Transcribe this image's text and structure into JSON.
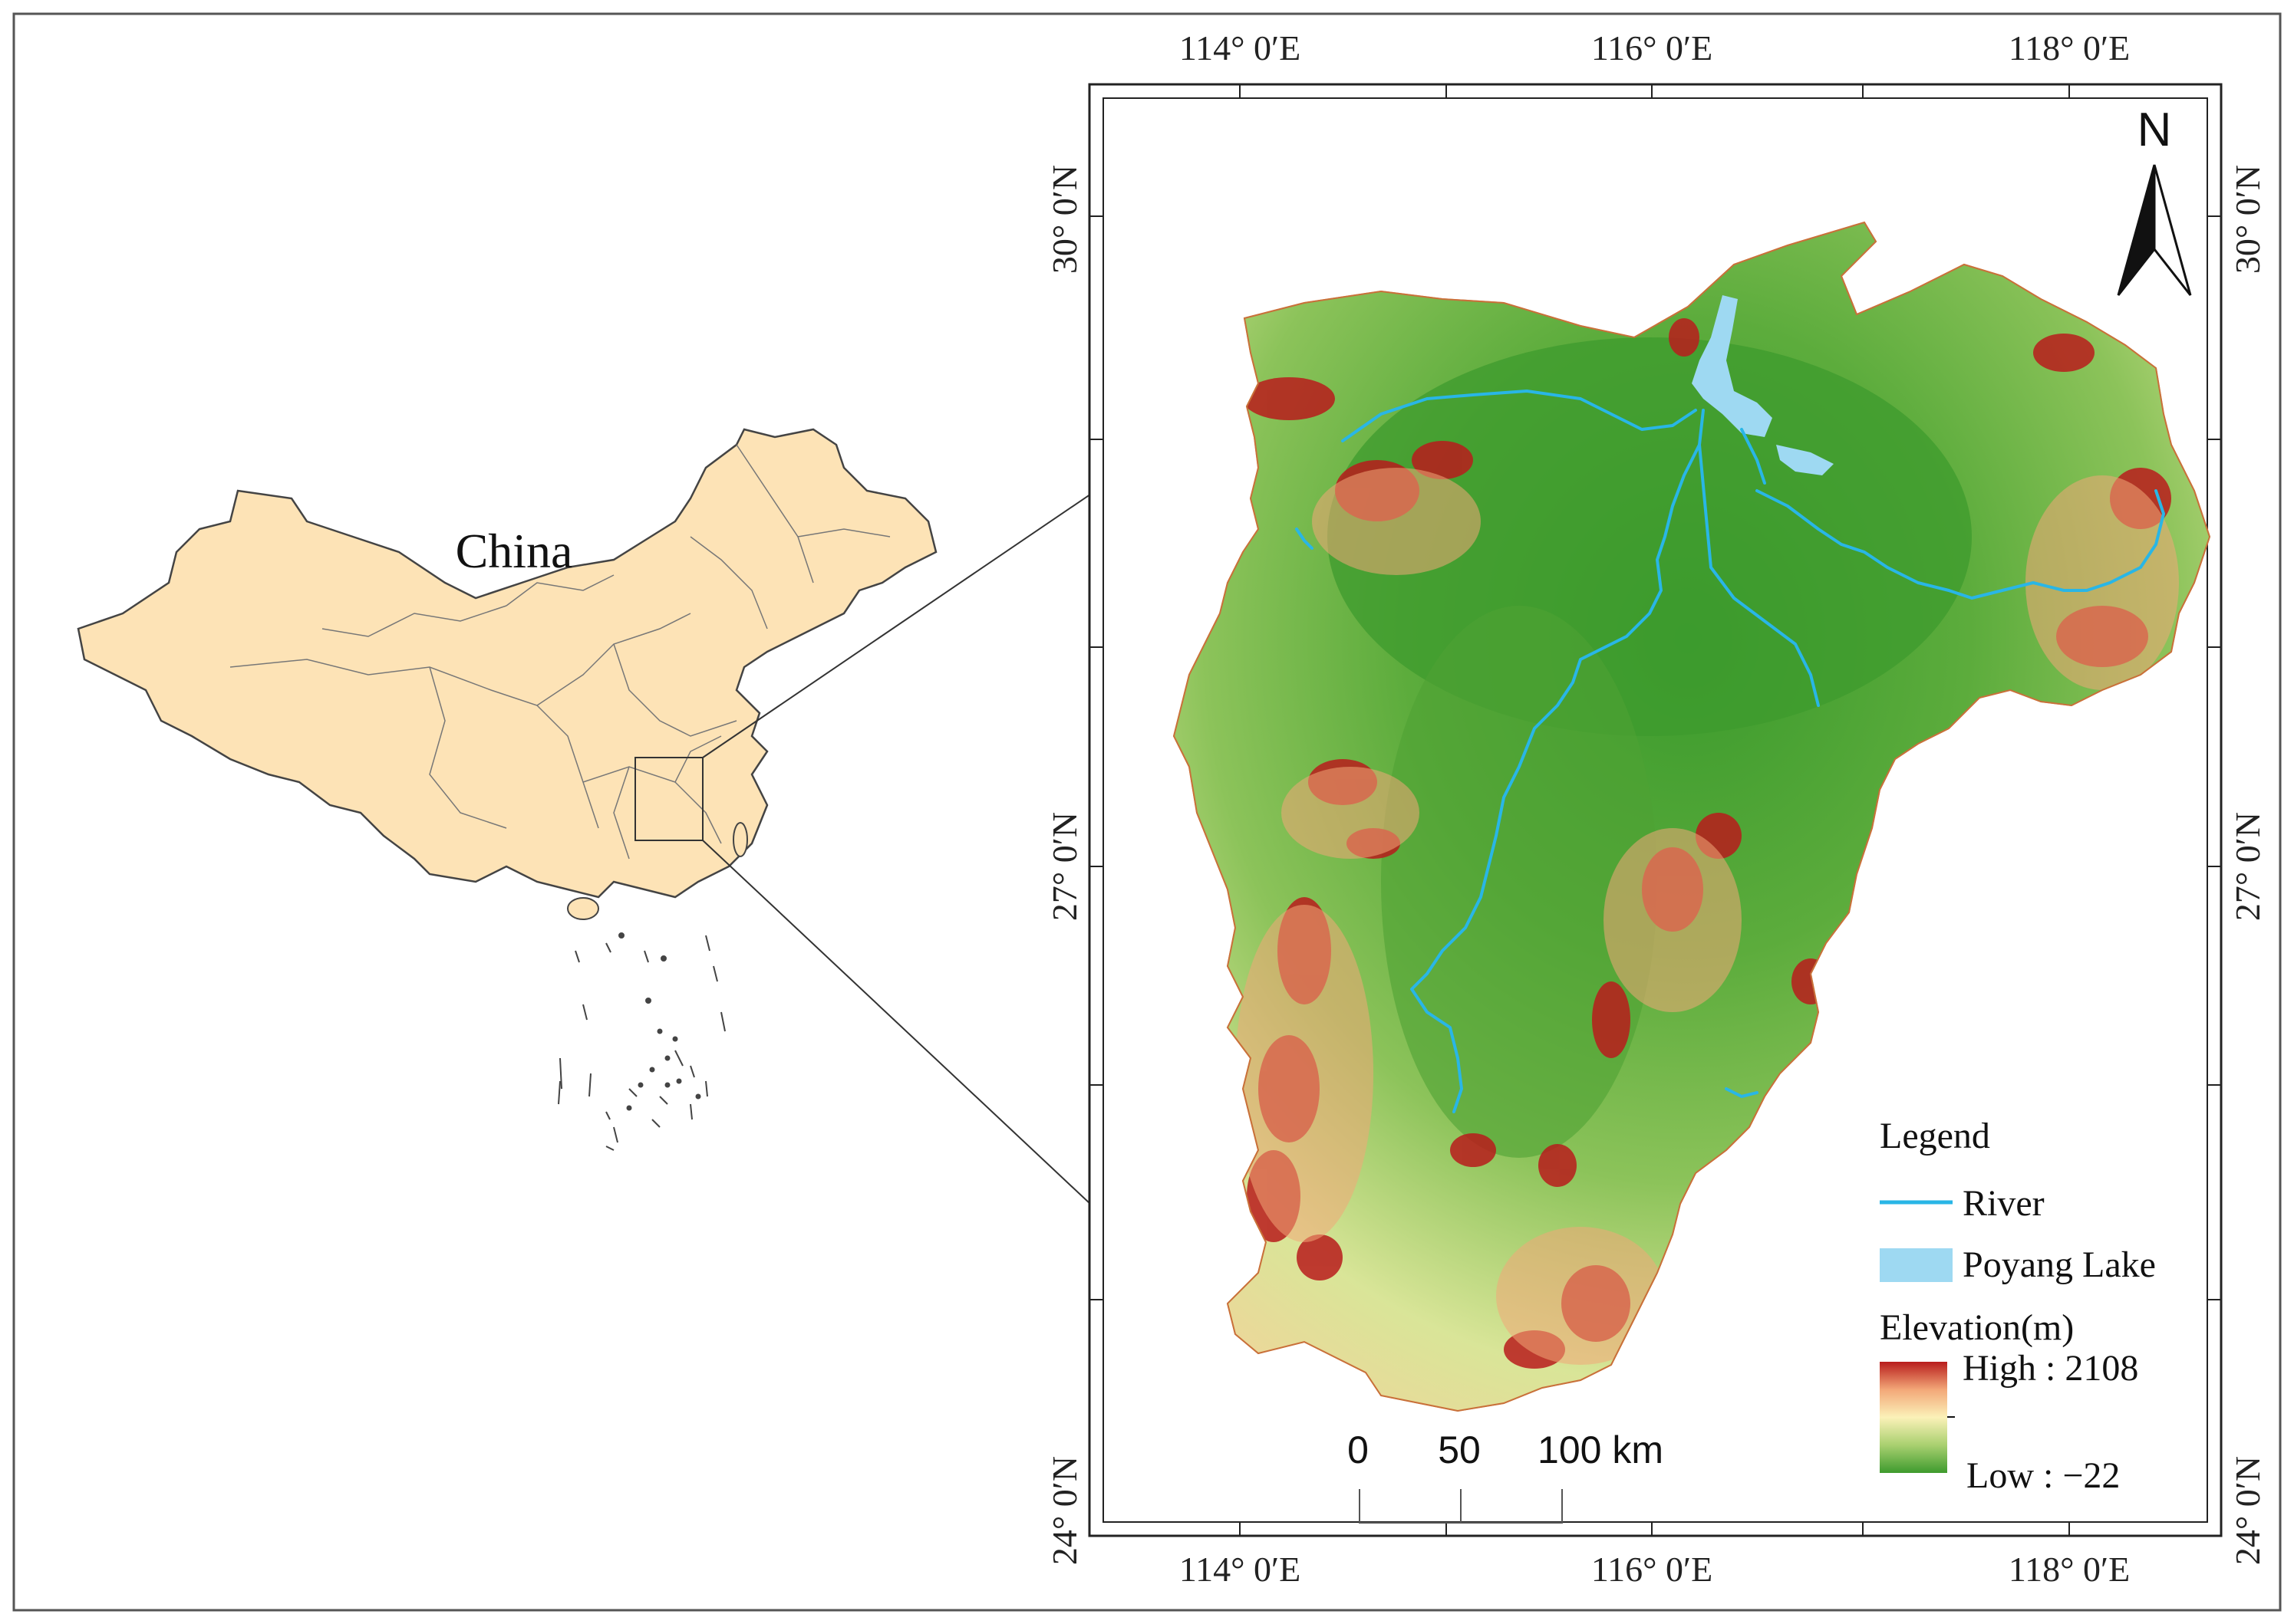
{
  "overview_map": {
    "country_label": "China",
    "fill_color": "#fde3b6",
    "border_color": "#444444"
  },
  "main_map": {
    "lon_ticks_top": [
      "114° 0′E",
      "116° 0′E",
      "118° 0′E"
    ],
    "lon_ticks_bottom": [
      "114° 0′E",
      "116° 0′E",
      "118° 0′E"
    ],
    "lat_ticks_left": [
      "30° 0′N",
      "27° 0′N",
      "24° 0′N"
    ],
    "lat_ticks_right": [
      "30° 0′N",
      "27° 0′N",
      "24° 0′N"
    ],
    "north_arrow_label": "N",
    "scale_bar": {
      "labels": [
        "0",
        "50",
        "100 km"
      ]
    },
    "legend": {
      "title": "Legend",
      "river_label": "River",
      "lake_label": "Poyang Lake",
      "elevation_title": "Elevation(m)",
      "high_label": "High : 2108",
      "low_label": "Low : −22",
      "river_color": "#29b6e6",
      "lake_color": "#9ed9f2",
      "ramp_colors": [
        "#b81c1c",
        "#f3a778",
        "#fbf1b8",
        "#a9d070",
        "#3e9b2e"
      ]
    }
  }
}
